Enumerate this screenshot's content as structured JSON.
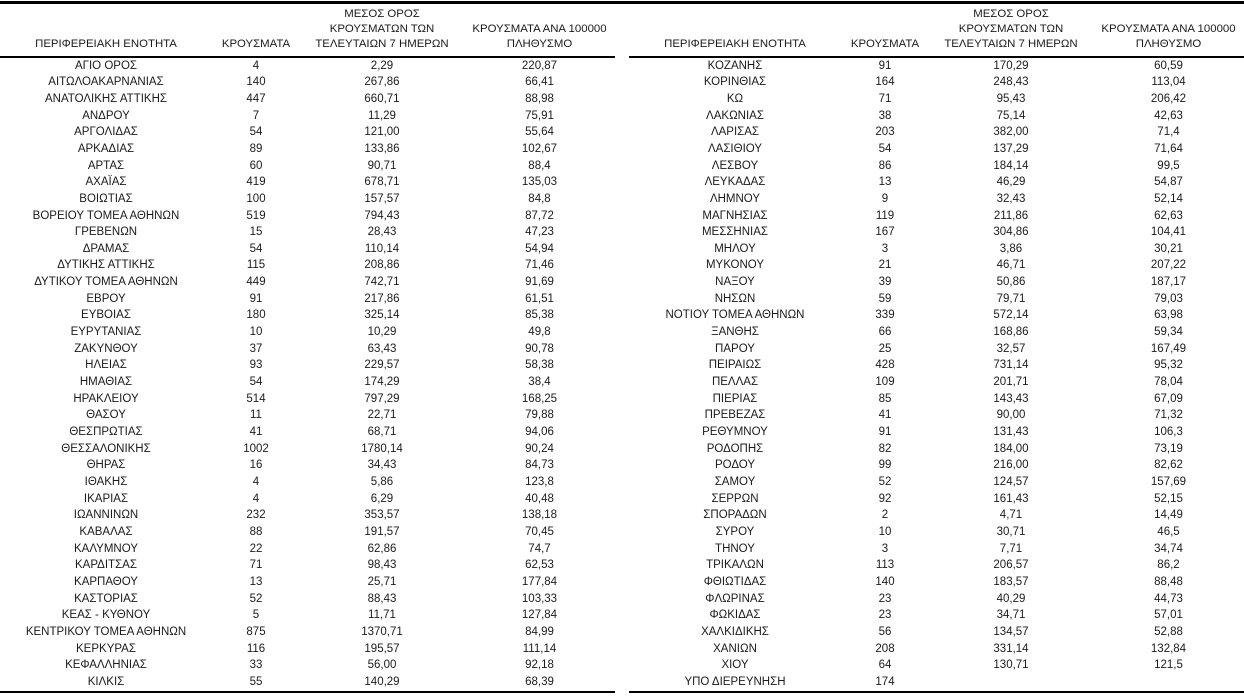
{
  "document": {
    "type": "regional-covid-cases-table",
    "language": "el",
    "text_color": "#1b1b1b",
    "border_color": "#000000",
    "background": "#ffffff"
  },
  "headers": [
    {
      "lines": [
        "ΠΕΡΙΦΕΡΕΙΑΚΗ ΕΝΟΤΗΤΑ"
      ]
    },
    {
      "lines": [
        "ΚΡΟΥΣΜΑΤΑ"
      ]
    },
    {
      "lines": [
        "ΜΕΣΟΣ ΟΡΟΣ",
        "ΚΡΟΥΣΜΑΤΩΝ ΤΩΝ",
        "ΤΕΛΕΥΤΑΙΩΝ 7 ΗΜΕΡΩΝ"
      ]
    },
    {
      "lines": [
        "ΚΡΟΥΣΜΑΤΑ ΑΝΑ 100000",
        "ΠΛΗΘΥΣΜΟ"
      ]
    }
  ],
  "left_table": {
    "rows": [
      [
        "ΑΓΙΟ ΟΡΟΣ",
        "4",
        "2,29",
        "220,87"
      ],
      [
        "ΑΙΤΩΛΟΑΚΑΡΝΑΝΙΑΣ",
        "140",
        "267,86",
        "66,41"
      ],
      [
        "ΑΝΑΤΟΛΙΚΗΣ ΑΤΤΙΚΗΣ",
        "447",
        "660,71",
        "88,98"
      ],
      [
        "ΑΝΔΡΟΥ",
        "7",
        "11,29",
        "75,91"
      ],
      [
        "ΑΡΓΟΛΙΔΑΣ",
        "54",
        "121,00",
        "55,64"
      ],
      [
        "ΑΡΚΑΔΙΑΣ",
        "89",
        "133,86",
        "102,67"
      ],
      [
        "ΑΡΤΑΣ",
        "60",
        "90,71",
        "88,4"
      ],
      [
        "ΑΧΑΪΑΣ",
        "419",
        "678,71",
        "135,03"
      ],
      [
        "ΒΟΙΩΤΙΑΣ",
        "100",
        "157,57",
        "84,8"
      ],
      [
        "ΒΟΡΕΙΟΥ ΤΟΜΕΑ ΑΘΗΝΩΝ",
        "519",
        "794,43",
        "87,72"
      ],
      [
        "ΓΡΕΒΕΝΩΝ",
        "15",
        "28,43",
        "47,23"
      ],
      [
        "ΔΡΑΜΑΣ",
        "54",
        "110,14",
        "54,94"
      ],
      [
        "ΔΥΤΙΚΗΣ ΑΤΤΙΚΗΣ",
        "115",
        "208,86",
        "71,46"
      ],
      [
        "ΔΥΤΙΚΟΥ ΤΟΜΕΑ ΑΘΗΝΩΝ",
        "449",
        "742,71",
        "91,69"
      ],
      [
        "ΕΒΡΟΥ",
        "91",
        "217,86",
        "61,51"
      ],
      [
        "ΕΥΒΟΙΑΣ",
        "180",
        "325,14",
        "85,38"
      ],
      [
        "ΕΥΡΥΤΑΝΙΑΣ",
        "10",
        "10,29",
        "49,8"
      ],
      [
        "ΖΑΚΥΝΘΟΥ",
        "37",
        "63,43",
        "90,78"
      ],
      [
        "ΗΛΕΙΑΣ",
        "93",
        "229,57",
        "58,38"
      ],
      [
        "ΗΜΑΘΙΑΣ",
        "54",
        "174,29",
        "38,4"
      ],
      [
        "ΗΡΑΚΛΕΙΟΥ",
        "514",
        "797,29",
        "168,25"
      ],
      [
        "ΘΑΣΟΥ",
        "11",
        "22,71",
        "79,88"
      ],
      [
        "ΘΕΣΠΡΩΤΙΑΣ",
        "41",
        "68,71",
        "94,06"
      ],
      [
        "ΘΕΣΣΑΛΟΝΙΚΗΣ",
        "1002",
        "1780,14",
        "90,24"
      ],
      [
        "ΘΗΡΑΣ",
        "16",
        "34,43",
        "84,73"
      ],
      [
        "ΙΘΑΚΗΣ",
        "4",
        "5,86",
        "123,8"
      ],
      [
        "ΙΚΑΡΙΑΣ",
        "4",
        "6,29",
        "40,48"
      ],
      [
        "ΙΩΑΝΝΙΝΩΝ",
        "232",
        "353,57",
        "138,18"
      ],
      [
        "ΚΑΒΑΛΑΣ",
        "88",
        "191,57",
        "70,45"
      ],
      [
        "ΚΑΛΥΜΝΟΥ",
        "22",
        "62,86",
        "74,7"
      ],
      [
        "ΚΑΡΔΙΤΣΑΣ",
        "71",
        "98,43",
        "62,53"
      ],
      [
        "ΚΑΡΠΑΘΟΥ",
        "13",
        "25,71",
        "177,84"
      ],
      [
        "ΚΑΣΤΟΡΙΑΣ",
        "52",
        "88,43",
        "103,33"
      ],
      [
        "ΚΕΑΣ - ΚΥΘΝΟΥ",
        "5",
        "11,71",
        "127,84"
      ],
      [
        "ΚΕΝΤΡΙΚΟΥ ΤΟΜΕΑ ΑΘΗΝΩΝ",
        "875",
        "1370,71",
        "84,99"
      ],
      [
        "ΚΕΡΚΥΡΑΣ",
        "116",
        "195,57",
        "111,14"
      ],
      [
        "ΚΕΦΑΛΛΗΝΙΑΣ",
        "33",
        "56,00",
        "92,18"
      ],
      [
        "ΚΙΛΚΙΣ",
        "55",
        "140,29",
        "68,39"
      ]
    ]
  },
  "right_table": {
    "rows": [
      [
        "ΚΟΖΑΝΗΣ",
        "91",
        "170,29",
        "60,59"
      ],
      [
        "ΚΟΡΙΝΘΙΑΣ",
        "164",
        "248,43",
        "113,04"
      ],
      [
        "ΚΩ",
        "71",
        "95,43",
        "206,42"
      ],
      [
        "ΛΑΚΩΝΙΑΣ",
        "38",
        "75,14",
        "42,63"
      ],
      [
        "ΛΑΡΙΣΑΣ",
        "203",
        "382,00",
        "71,4"
      ],
      [
        "ΛΑΣΙΘΙΟΥ",
        "54",
        "137,29",
        "71,64"
      ],
      [
        "ΛΕΣΒΟΥ",
        "86",
        "184,14",
        "99,5"
      ],
      [
        "ΛΕΥΚΑΔΑΣ",
        "13",
        "46,29",
        "54,87"
      ],
      [
        "ΛΗΜΝΟΥ",
        "9",
        "32,43",
        "52,14"
      ],
      [
        "ΜΑΓΝΗΣΙΑΣ",
        "119",
        "211,86",
        "62,63"
      ],
      [
        "ΜΕΣΣΗΝΙΑΣ",
        "167",
        "304,86",
        "104,41"
      ],
      [
        "ΜΗΛΟΥ",
        "3",
        "3,86",
        "30,21"
      ],
      [
        "ΜΥΚΟΝΟΥ",
        "21",
        "46,71",
        "207,22"
      ],
      [
        "ΝΑΞΟΥ",
        "39",
        "50,86",
        "187,17"
      ],
      [
        "ΝΗΣΩΝ",
        "59",
        "79,71",
        "79,03"
      ],
      [
        "ΝΟΤΙΟΥ ΤΟΜΕΑ ΑΘΗΝΩΝ",
        "339",
        "572,14",
        "63,98"
      ],
      [
        "ΞΑΝΘΗΣ",
        "66",
        "168,86",
        "59,34"
      ],
      [
        "ΠΑΡΟΥ",
        "25",
        "32,57",
        "167,49"
      ],
      [
        "ΠΕΙΡΑΙΩΣ",
        "428",
        "731,14",
        "95,32"
      ],
      [
        "ΠΕΛΛΑΣ",
        "109",
        "201,71",
        "78,04"
      ],
      [
        "ΠΙΕΡΙΑΣ",
        "85",
        "143,43",
        "67,09"
      ],
      [
        "ΠΡΕΒΕΖΑΣ",
        "41",
        "90,00",
        "71,32"
      ],
      [
        "ΡΕΘΥΜΝΟΥ",
        "91",
        "131,43",
        "106,3"
      ],
      [
        "ΡΟΔΟΠΗΣ",
        "82",
        "184,00",
        "73,19"
      ],
      [
        "ΡΟΔΟΥ",
        "99",
        "216,00",
        "82,62"
      ],
      [
        "ΣΑΜΟΥ",
        "52",
        "124,57",
        "157,69"
      ],
      [
        "ΣΕΡΡΩΝ",
        "92",
        "161,43",
        "52,15"
      ],
      [
        "ΣΠΟΡΑΔΩΝ",
        "2",
        "4,71",
        "14,49"
      ],
      [
        "ΣΥΡΟΥ",
        "10",
        "30,71",
        "46,5"
      ],
      [
        "ΤΗΝΟΥ",
        "3",
        "7,71",
        "34,74"
      ],
      [
        "ΤΡΙΚΑΛΩΝ",
        "113",
        "206,57",
        "86,2"
      ],
      [
        "ΦΘΙΩΤΙΔΑΣ",
        "140",
        "183,57",
        "88,48"
      ],
      [
        "ΦΛΩΡΙΝΑΣ",
        "23",
        "40,29",
        "44,73"
      ],
      [
        "ΦΩΚΙΔΑΣ",
        "23",
        "34,71",
        "57,01"
      ],
      [
        "ΧΑΛΚΙΔΙΚΗΣ",
        "56",
        "134,57",
        "52,88"
      ],
      [
        "ΧΑΝΙΩΝ",
        "208",
        "331,14",
        "132,84"
      ],
      [
        "ΧΙΟΥ",
        "64",
        "130,71",
        "121,5"
      ],
      [
        "ΥΠΟ ΔΙΕΡΕΥΝΗΣΗ",
        "174",
        "",
        ""
      ]
    ]
  }
}
